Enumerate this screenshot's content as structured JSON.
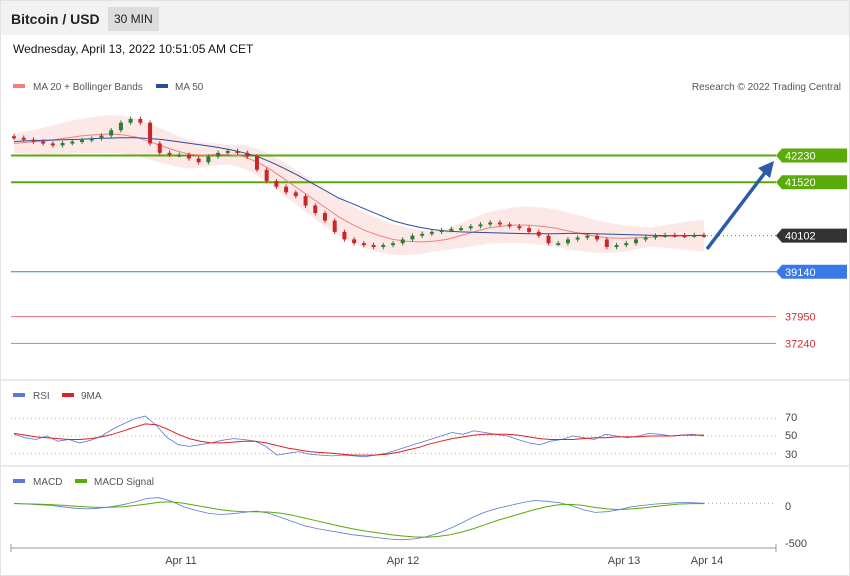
{
  "header": {
    "title": "Bitcoin / USD",
    "timeframe": "30 MIN"
  },
  "date": "Wednesday, April 13, 2022 10:51:05 AM CET",
  "colors": {
    "bollinger": "#f08080",
    "ma50": "#2a4d9a",
    "up": "#2e7d32",
    "down": "#c62828",
    "support": "#3b78e7",
    "resistance": "#5aaa0a",
    "lowlevel": "#e57373",
    "arrow": "#2a5ba8"
  },
  "chart_data": [
    {
      "type": "line",
      "title": "",
      "legend": [
        {
          "name": "MA 20 + Bollinger Bands",
          "color": "#f08080"
        },
        {
          "name": "MA 50",
          "color": "#2a4d9a"
        }
      ],
      "legend_position": "top-left",
      "credit": "Research © 2022 Trading Central",
      "ylim": [
        36000,
        44500
      ],
      "x_tick_labels": [
        "Apr 11",
        "Apr 12",
        "Apr 13",
        "Apr 14"
      ],
      "levels": [
        {
          "label": "42230",
          "value": 42230,
          "kind": "resistance"
        },
        {
          "label": "41520",
          "value": 41520,
          "kind": "resistance"
        },
        {
          "label": "40102",
          "value": 40102,
          "kind": "current"
        },
        {
          "label": "39140",
          "value": 39140,
          "kind": "support"
        },
        {
          "label": "37950",
          "value": 37950,
          "kind": "low"
        },
        {
          "label": "37240",
          "value": 37240,
          "kind": "low"
        }
      ],
      "close_series": [
        42700,
        42650,
        42600,
        42550,
        42500,
        42560,
        42600,
        42640,
        42680,
        42760,
        42900,
        43100,
        43200,
        43100,
        42550,
        42300,
        42250,
        42250,
        42150,
        42050,
        42200,
        42300,
        42350,
        42300,
        42200,
        41850,
        41550,
        41400,
        41250,
        41150,
        40900,
        40700,
        40500,
        40200,
        40000,
        39900,
        39850,
        39800,
        39850,
        39900,
        40000,
        40100,
        40150,
        40200,
        40250,
        40280,
        40300,
        40350,
        40400,
        40450,
        40400,
        40350,
        40300,
        40200,
        40100,
        39900,
        39900,
        40000,
        40050,
        40100,
        40000,
        39800,
        39850,
        39900,
        40000,
        40050,
        40100,
        40120,
        40110,
        40100,
        40120,
        40102
      ],
      "ma50_series": [
        42600,
        42620,
        42630,
        42640,
        42650,
        42660,
        42680,
        42690,
        42700,
        42700,
        42680,
        42650,
        42600,
        42550,
        42500,
        42450,
        42380,
        42300,
        42200,
        42050,
        41880,
        41700,
        41500,
        41300,
        41100,
        40950,
        40800,
        40650,
        40500,
        40400,
        40320,
        40260,
        40220,
        40200,
        40190,
        40180,
        40170,
        40160,
        40150,
        40150,
        40150,
        40160,
        40160,
        40150,
        40140,
        40130,
        40120,
        40110,
        40100,
        40100,
        40100,
        40110
      ],
      "ma20_series": [
        42550,
        42580,
        42600,
        42650,
        42700,
        42750,
        42780,
        42800,
        42780,
        42720,
        42600,
        42470,
        42350,
        42260,
        42240,
        42260,
        42250,
        42200,
        42050,
        41850,
        41600,
        41350,
        41100,
        40850,
        40600,
        40400,
        40230,
        40100,
        40000,
        39950,
        39930,
        39950,
        40000,
        40100,
        40200,
        40300,
        40350,
        40380,
        40380,
        40350,
        40300,
        40220,
        40150,
        40080,
        40040,
        40030,
        40040,
        40060,
        40080,
        40090,
        40100,
        40102
      ]
    },
    {
      "type": "line",
      "legend": [
        {
          "name": "RSI",
          "color": "#5b78d6"
        },
        {
          "name": "9MA",
          "color": "#e02020"
        }
      ],
      "legend_position": "top-left",
      "ylim": [
        20,
        80
      ],
      "y_tick_labels": [
        "70",
        "50",
        "30"
      ],
      "rsi": [
        52,
        48,
        46,
        50,
        44,
        46,
        42,
        45,
        50,
        58,
        64,
        70,
        73,
        62,
        48,
        40,
        38,
        40,
        42,
        45,
        47,
        46,
        44,
        38,
        28,
        30,
        32,
        29,
        28,
        27,
        28,
        27,
        26,
        28,
        30,
        34,
        38,
        42,
        46,
        50,
        54,
        52,
        56,
        54,
        52,
        50,
        46,
        42,
        40,
        44,
        46,
        50,
        48,
        46,
        52,
        50,
        48,
        50,
        53,
        52,
        50,
        51,
        52,
        50
      ],
      "rsi_9ma": [
        53,
        51,
        49,
        48,
        47,
        46,
        46,
        47,
        49,
        52,
        56,
        60,
        64,
        63,
        58,
        52,
        47,
        44,
        42,
        42,
        43,
        44,
        44,
        42,
        39,
        36,
        34,
        32,
        31,
        30,
        29,
        28,
        28,
        28,
        29,
        31,
        34,
        37,
        41,
        44,
        47,
        49,
        51,
        52,
        52,
        52,
        51,
        49,
        47,
        46,
        46,
        46,
        47,
        48,
        48,
        49,
        49,
        49,
        50,
        50,
        50,
        51,
        51,
        51
      ]
    },
    {
      "type": "line",
      "legend": [
        {
          "name": "MACD",
          "color": "#5b78d6"
        },
        {
          "name": "MACD Signal",
          "color": "#5aaa0a"
        }
      ],
      "legend_position": "top-left",
      "ylim": [
        -600,
        200
      ],
      "y_tick_labels": [
        "0",
        "-500"
      ],
      "macd": [
        10,
        0,
        -10,
        -20,
        -40,
        -60,
        -70,
        -60,
        -40,
        -10,
        30,
        80,
        90,
        40,
        -40,
        -90,
        -130,
        -150,
        -140,
        -120,
        -100,
        -130,
        -190,
        -250,
        -310,
        -350,
        -380,
        -410,
        -440,
        -460,
        -480,
        -500,
        -510,
        -500,
        -470,
        -420,
        -350,
        -270,
        -180,
        -110,
        -60,
        -20,
        20,
        50,
        40,
        20,
        -20,
        -80,
        -120,
        -110,
        -80,
        -40,
        -20,
        0,
        10,
        20,
        20,
        10
      ],
      "signal": [
        5,
        2,
        -2,
        -8,
        -18,
        -30,
        -42,
        -48,
        -46,
        -38,
        -22,
        0,
        25,
        30,
        10,
        -20,
        -50,
        -80,
        -100,
        -110,
        -110,
        -115,
        -130,
        -160,
        -200,
        -240,
        -280,
        -320,
        -355,
        -385,
        -410,
        -435,
        -455,
        -470,
        -475,
        -465,
        -440,
        -400,
        -350,
        -290,
        -230,
        -180,
        -130,
        -80,
        -40,
        -10,
        -5,
        -20,
        -50,
        -70,
        -80,
        -70,
        -55,
        -35,
        -15,
        0,
        5,
        5
      ]
    }
  ]
}
